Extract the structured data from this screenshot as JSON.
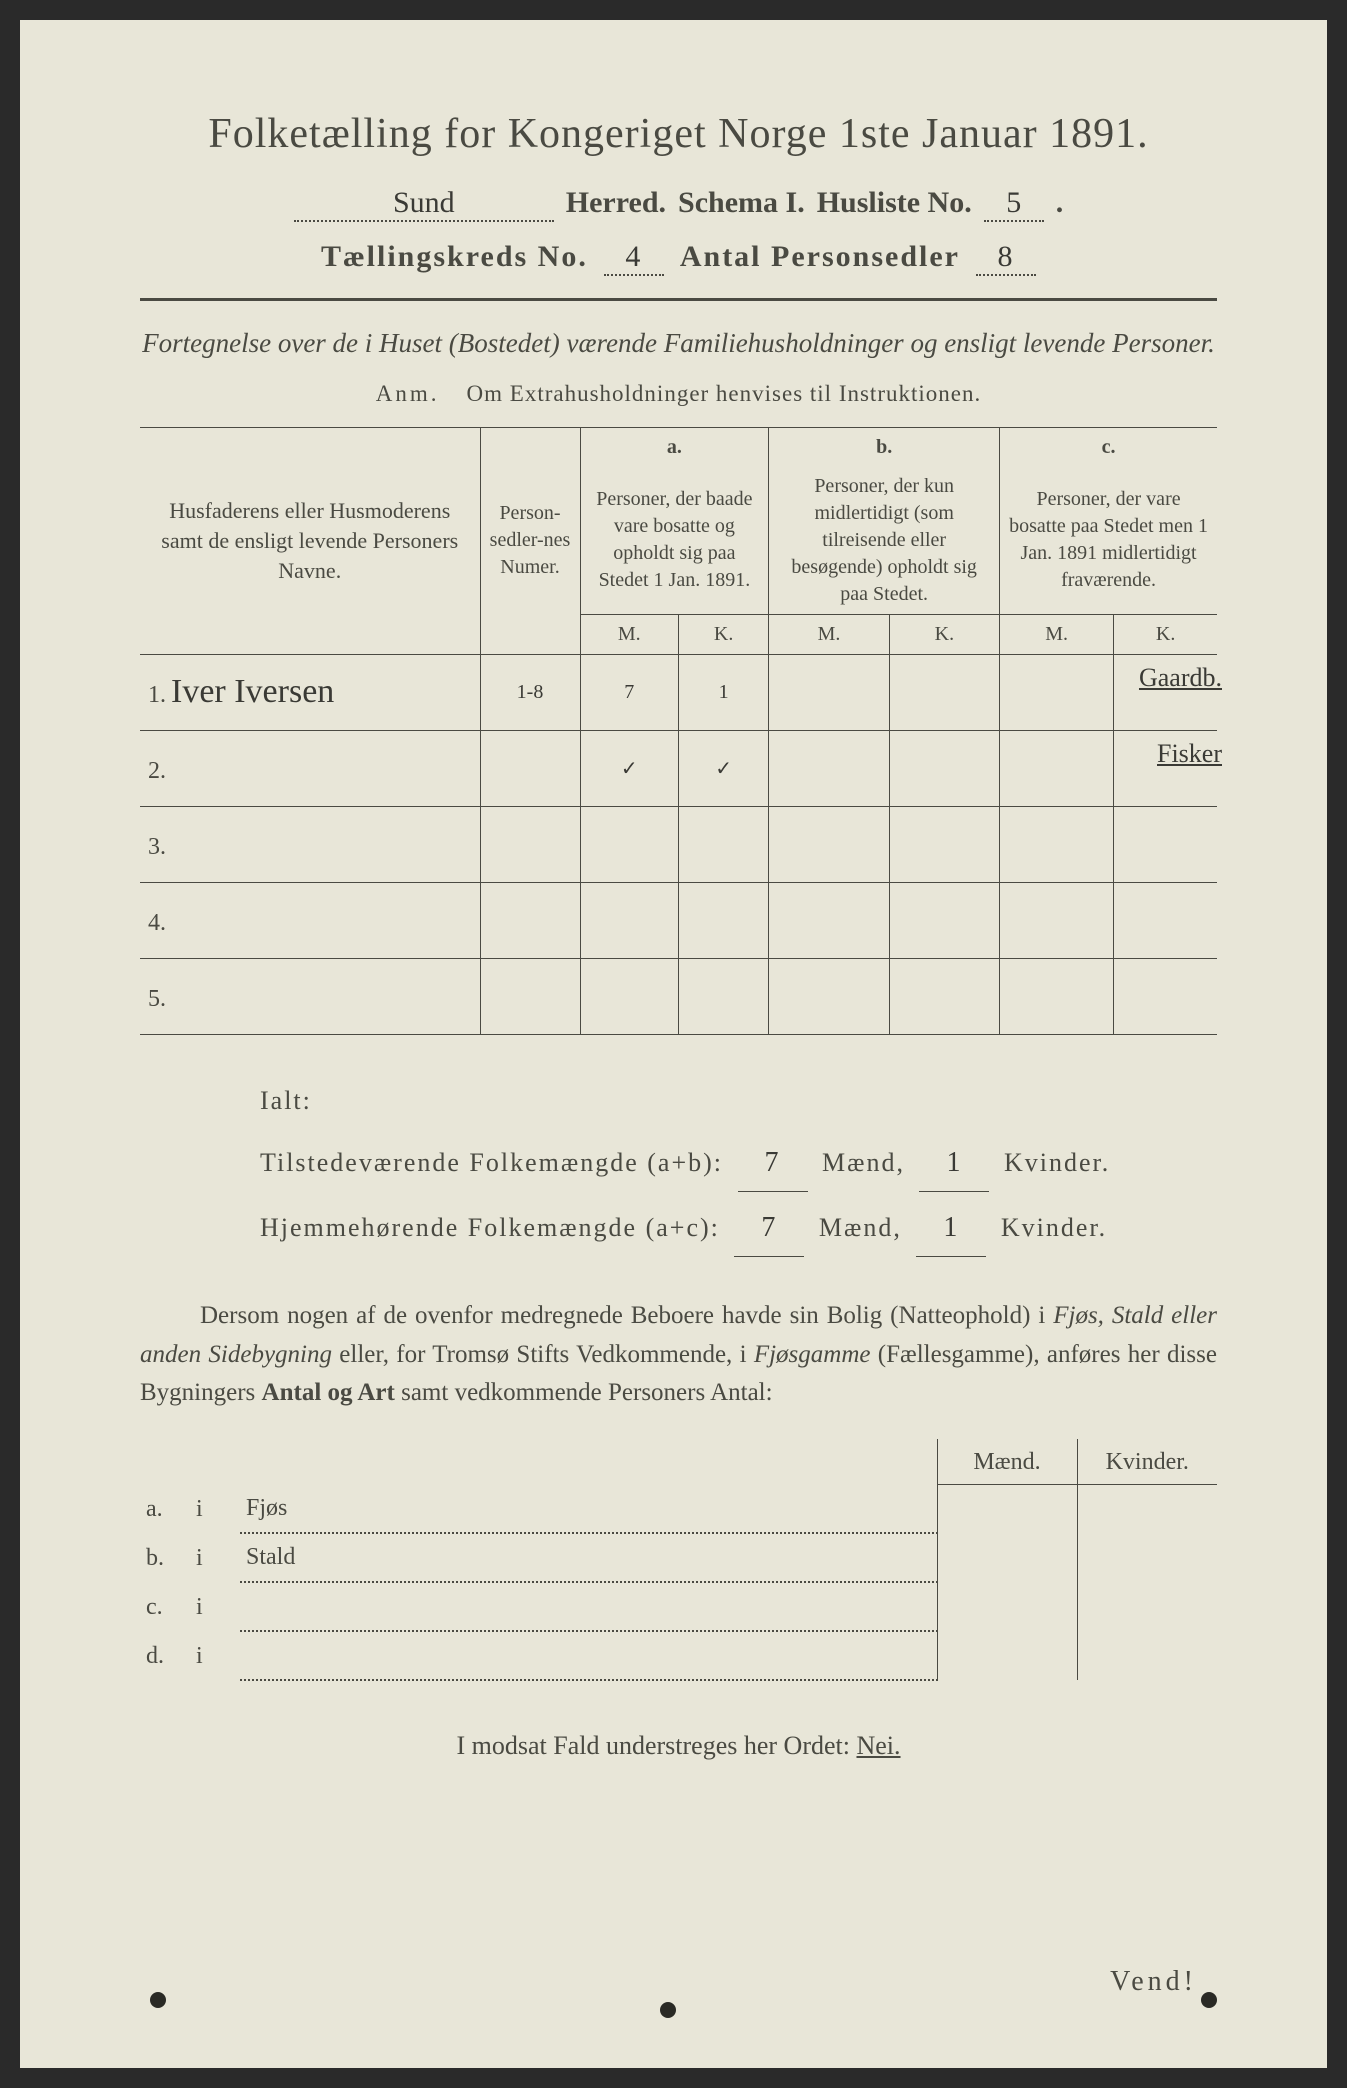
{
  "title": "Folketælling for Kongeriget Norge 1ste Januar 1891.",
  "header": {
    "herred_value": "Sund",
    "herred_label": "Herred.",
    "schema_label": "Schema I.",
    "husliste_label": "Husliste No.",
    "husliste_value": "5",
    "kreds_label": "Tællingskreds No.",
    "kreds_value": "4",
    "antal_label": "Antal Personsedler",
    "antal_value": "8"
  },
  "subtitle": "Fortegnelse over de i Huset (Bostedet) værende Familiehusholdninger og ensligt levende Personer.",
  "anm_label": "Anm.",
  "anm_text": "Om Extrahusholdninger henvises til Instruktionen.",
  "table": {
    "col_name": "Husfaderens eller Husmoderens samt de ensligt levende Personers Navne.",
    "col_num": "Person-sedler-nes Numer.",
    "col_a_label": "a.",
    "col_a": "Personer, der baade vare bosatte og opholdt sig paa Stedet 1 Jan. 1891.",
    "col_b_label": "b.",
    "col_b": "Personer, der kun midlertidigt (som tilreisende eller besøgende) opholdt sig paa Stedet.",
    "col_c_label": "c.",
    "col_c": "Personer, der vare bosatte paa Stedet men 1 Jan. 1891 midlertidigt fraværende.",
    "M": "M.",
    "K": "K.",
    "rows": [
      {
        "n": "1.",
        "name": "Iver Iversen",
        "num": "1-8",
        "aM": "7",
        "aK": "1",
        "bM": "",
        "bK": "",
        "cM": "",
        "cK": "",
        "note": "Gaardb."
      },
      {
        "n": "2.",
        "name": "",
        "num": "",
        "aM": "✓",
        "aK": "✓",
        "bM": "",
        "bK": "",
        "cM": "",
        "cK": "",
        "note": "Fisker"
      },
      {
        "n": "3.",
        "name": "",
        "num": "",
        "aM": "",
        "aK": "",
        "bM": "",
        "bK": "",
        "cM": "",
        "cK": "",
        "note": ""
      },
      {
        "n": "4.",
        "name": "",
        "num": "",
        "aM": "",
        "aK": "",
        "bM": "",
        "bK": "",
        "cM": "",
        "cK": "",
        "note": ""
      },
      {
        "n": "5.",
        "name": "",
        "num": "",
        "aM": "",
        "aK": "",
        "bM": "",
        "bK": "",
        "cM": "",
        "cK": "",
        "note": ""
      }
    ]
  },
  "totals": {
    "ialt": "Ialt:",
    "line1_label": "Tilstedeværende Folkemængde (a+b):",
    "line1_m": "7",
    "line1_k": "1",
    "line2_label": "Hjemmehørende Folkemængde (a+c):",
    "line2_m": "7",
    "line2_k": "1",
    "maend": "Mænd,",
    "kvinder": "Kvinder."
  },
  "para": "Dersom nogen af de ovenfor medregnede Beboere havde sin Bolig (Natteophold) i Fjøs, Stald eller anden Sidebygning eller, for Tromsø Stifts Vedkommende, i Fjøsgamme (Fællesgamme), anføres her disse Bygningers Antal og Art samt vedkommende Personers Antal:",
  "side": {
    "maend": "Mænd.",
    "kvinder": "Kvinder.",
    "rows": [
      {
        "a": "a.",
        "i": "i",
        "type": "Fjøs"
      },
      {
        "a": "b.",
        "i": "i",
        "type": "Stald"
      },
      {
        "a": "c.",
        "i": "i",
        "type": ""
      },
      {
        "a": "d.",
        "i": "i",
        "type": ""
      }
    ]
  },
  "footer": "I modsat Fald understreges her Ordet:",
  "nei": "Nei.",
  "vend": "Vend!",
  "colors": {
    "page_bg": "#e8e6d8",
    "text": "#4a4a42",
    "hand": "#3a3a35"
  }
}
